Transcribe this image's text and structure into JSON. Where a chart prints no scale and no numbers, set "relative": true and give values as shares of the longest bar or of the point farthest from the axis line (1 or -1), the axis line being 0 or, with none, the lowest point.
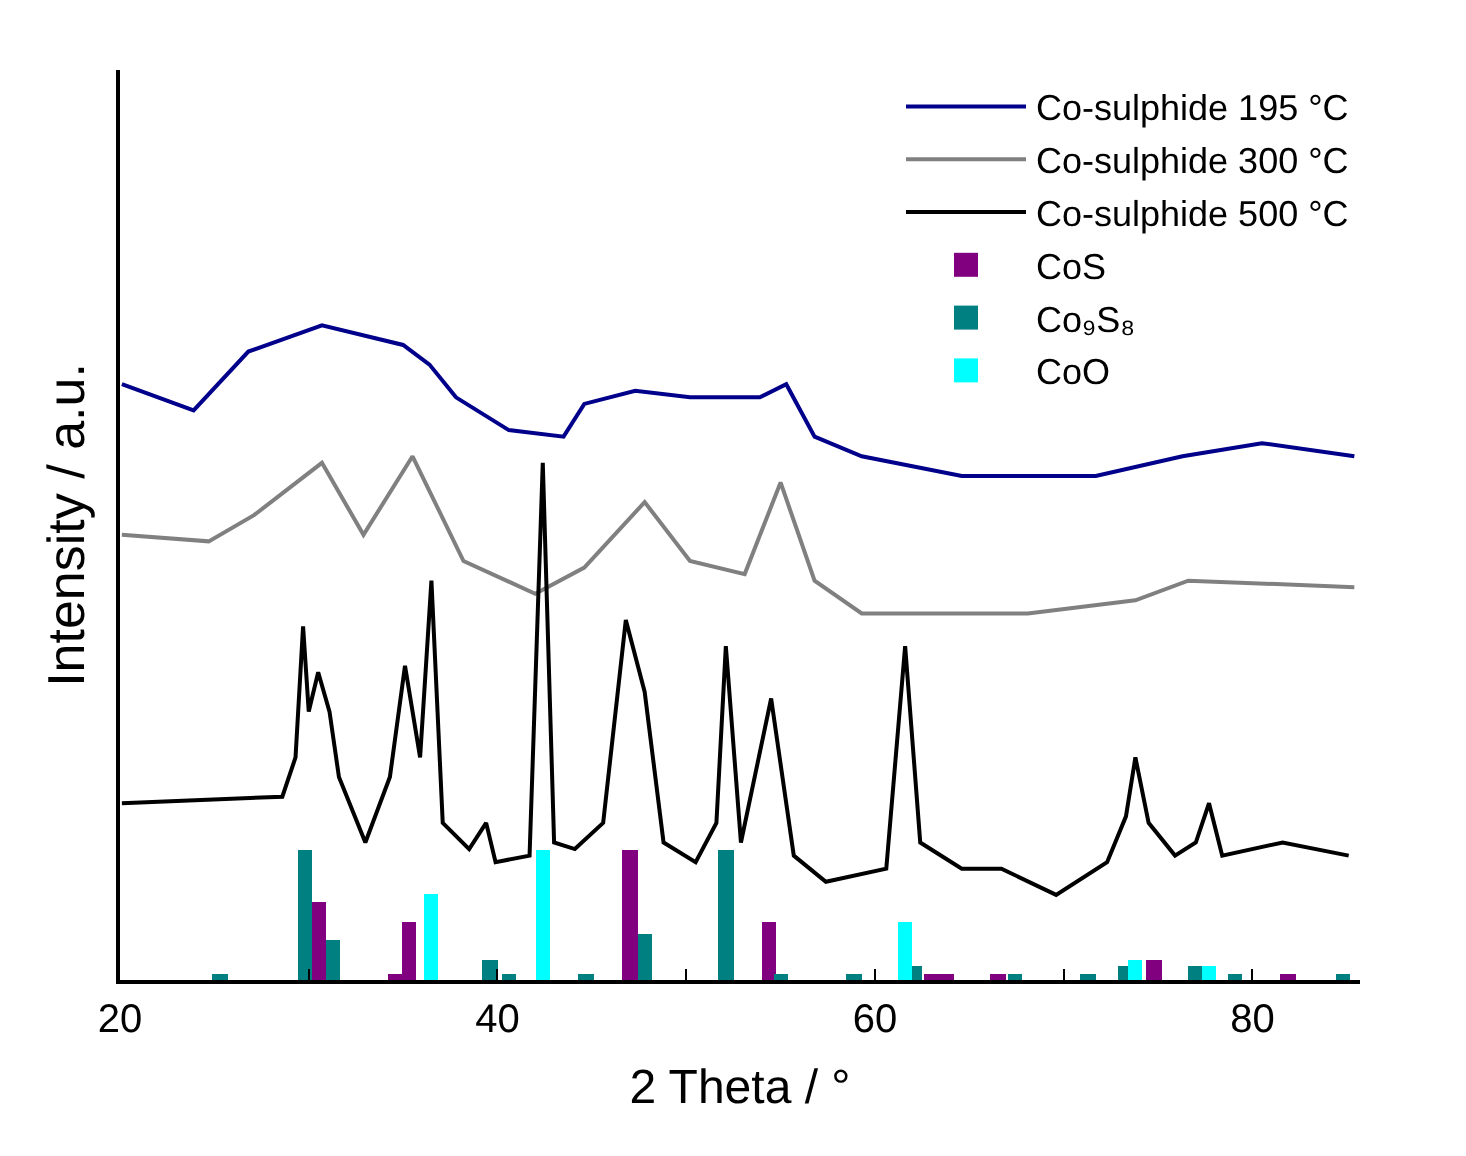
{
  "chart_data": {
    "type": "line",
    "relative": true,
    "xlabel": "2 Theta / °",
    "ylabel": "Intensity / a.u.",
    "xlim": [
      20,
      85.7
    ],
    "xticks": [
      20,
      {
        "value": 30,
        "label": null
      },
      40,
      {
        "value": 50,
        "label": null
      },
      60,
      {
        "value": 70,
        "label": null
      },
      80
    ],
    "legend": "top right",
    "series": [
      {
        "name": "Co-sulphide 195 °C",
        "color": "#00008b",
        "x": [
          20.1,
          23.9,
          26.8,
          30.7,
          35,
          36.4,
          37.8,
          40.6,
          43.5,
          44.6,
          47.3,
          50.2,
          53.9,
          55.3,
          56.8,
          59.3,
          64.6,
          71.7,
          76.3,
          80.5,
          85.4
        ],
        "values": [
          0.91,
          0.87,
          0.96,
          1.0,
          0.97,
          0.94,
          0.89,
          0.84,
          0.83,
          0.88,
          0.9,
          0.89,
          0.89,
          0.91,
          0.83,
          0.8,
          0.77,
          0.77,
          0.8,
          0.82,
          0.8
        ]
      },
      {
        "name": "Co-sulphide 300 °C",
        "color": "#808080",
        "x": [
          20.1,
          24.7,
          27.1,
          30.7,
          32.9,
          35.5,
          38.2,
          42,
          44.6,
          47.8,
          50.2,
          53.1,
          55,
          56.8,
          59.3,
          68.1,
          73.8,
          76.6,
          85.4
        ],
        "values": [
          0.68,
          0.67,
          0.71,
          0.79,
          0.68,
          0.8,
          0.64,
          0.59,
          0.63,
          0.73,
          0.64,
          0.62,
          0.76,
          0.61,
          0.56,
          0.56,
          0.58,
          0.61,
          0.6
        ]
      },
      {
        "name": "Co-sulphide 500 °C",
        "color": "#000000",
        "x": [
          20.1,
          28.6,
          29.3,
          29.7,
          30,
          30.5,
          31.1,
          31.6,
          33,
          34.3,
          35.1,
          35.9,
          36.5,
          37.1,
          38.5,
          39.4,
          39.9,
          41.7,
          42.4,
          43,
          44.1,
          45.6,
          46.8,
          47.8,
          48.8,
          50.5,
          51.6,
          52.1,
          52.9,
          54.5,
          55.7,
          57.4,
          60.6,
          61.6,
          62.4,
          64.6,
          66.7,
          69.6,
          72.3,
          73.3,
          73.8,
          74.5,
          75.9,
          77,
          77.7,
          78.4,
          81.6,
          85.1
        ],
        "values": [
          0.27,
          0.28,
          0.34,
          0.54,
          0.41,
          0.47,
          0.41,
          0.31,
          0.21,
          0.31,
          0.48,
          0.34,
          0.61,
          0.24,
          0.2,
          0.24,
          0.18,
          0.19,
          0.79,
          0.21,
          0.2,
          0.24,
          0.55,
          0.44,
          0.21,
          0.18,
          0.24,
          0.51,
          0.21,
          0.43,
          0.19,
          0.15,
          0.17,
          0.51,
          0.21,
          0.17,
          0.17,
          0.13,
          0.18,
          0.25,
          0.34,
          0.24,
          0.19,
          0.21,
          0.27,
          0.19,
          0.21,
          0.19
        ]
      },
      {
        "name": "CoS",
        "color": "#800080",
        "type": "bar",
        "x": [
          30.5,
          34.6,
          35.3,
          47,
          54.4,
          63,
          63.8,
          66.5,
          74.8,
          81.9
        ],
        "values": [
          0.12,
          0.01,
          0.09,
          0.2,
          0.09,
          0.01,
          0.01,
          0.01,
          0.03,
          0.01
        ]
      },
      {
        "name": "Co₉S₈",
        "color": "#008080",
        "type": "bar",
        "x": [
          25.3,
          29.8,
          31.3,
          36.1,
          39.6,
          40.6,
          44.7,
          47.8,
          52.1,
          55,
          58.9,
          62.1,
          67.4,
          71.3,
          73.3,
          77,
          79.1,
          84.8
        ],
        "values": [
          0.01,
          0.2,
          0.06,
          null,
          0.03,
          0.01,
          0.01,
          0.07,
          0.2,
          0.01,
          0.01,
          0.02,
          0.01,
          0.01,
          0.02,
          0.02,
          0.01,
          0.01
        ]
      },
      {
        "name": "CoO",
        "color": "#00ffff",
        "type": "bar",
        "x": [
          36.5,
          42.4,
          61.6,
          73.8,
          77.7
        ],
        "values": [
          0.13,
          0.2,
          0.09,
          0.03,
          0.02
        ]
      }
    ]
  }
}
